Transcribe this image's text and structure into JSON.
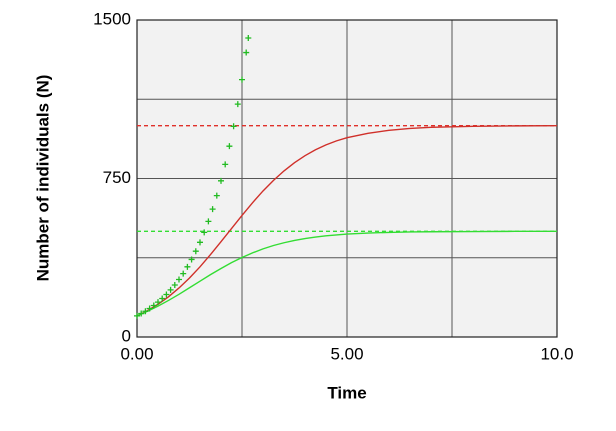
{
  "chart_data": {
    "type": "line",
    "xlabel": "Time",
    "ylabel": "Number of individuals (N)",
    "xlim": [
      0,
      10
    ],
    "ylim": [
      0,
      1500
    ],
    "xticks": [
      {
        "value": 0,
        "label": "0.00"
      },
      {
        "value": 2.5,
        "label": null
      },
      {
        "value": 5,
        "label": "5.00"
      },
      {
        "value": 7.5,
        "label": null
      },
      {
        "value": 10,
        "label": "10.0"
      }
    ],
    "yticks": [
      0,
      {
        "value": 375,
        "label": null
      },
      750,
      {
        "value": 1125,
        "label": null
      },
      1500
    ],
    "grid": true,
    "reference_lines": [
      {
        "value": 1000,
        "color": "#e0302a"
      },
      {
        "value": 500,
        "color": "#33dd33"
      }
    ],
    "series": [
      {
        "color": "#d0302a",
        "marker": "none",
        "x": [
          0,
          0.25,
          0.5,
          0.75,
          1,
          1.25,
          1.5,
          1.75,
          2,
          2.25,
          2.5,
          2.75,
          3,
          3.25,
          3.5,
          3.75,
          4,
          4.25,
          4.5,
          4.75,
          5,
          5.5,
          6,
          6.5,
          7,
          8,
          9,
          10
        ],
        "values": [
          100,
          125,
          155,
          190,
          232,
          279,
          332,
          390,
          451,
          513,
          575,
          635,
          691,
          741,
          786,
          825,
          858,
          886,
          909,
          928,
          943,
          964,
          978,
          987,
          992,
          997,
          999,
          1000
        ]
      },
      {
        "color": "#33dd33",
        "marker": "none",
        "x": [
          0,
          0.25,
          0.5,
          0.75,
          1,
          1.25,
          1.5,
          1.75,
          2,
          2.25,
          2.5,
          2.75,
          3,
          3.25,
          3.5,
          3.75,
          4,
          4.25,
          4.5,
          4.75,
          5,
          5.5,
          6,
          6.5,
          7,
          8,
          9,
          10
        ],
        "values": [
          100,
          122,
          146,
          173,
          202,
          233,
          264,
          295,
          324,
          352,
          376,
          398,
          417,
          433,
          446,
          457,
          466,
          473,
          479,
          483,
          487,
          492,
          495,
          497,
          498,
          499,
          500,
          500
        ]
      },
      {
        "color": "#22bb22",
        "marker": "plus",
        "x": [
          0,
          0.1,
          0.2,
          0.3,
          0.4,
          0.5,
          0.6,
          0.7,
          0.8,
          0.9,
          1,
          1.1,
          1.2,
          1.3,
          1.4,
          1.5,
          1.6,
          1.7,
          1.8,
          1.9,
          2,
          2.1,
          2.2,
          2.3,
          2.4,
          2.5,
          2.6,
          2.65
        ],
        "values": [
          100,
          111,
          122,
          135,
          149,
          165,
          182,
          201,
          223,
          246,
          272,
          300,
          332,
          367,
          406,
          448,
          495,
          547,
          605,
          669,
          739,
          817,
          903,
          997,
          1102,
          1218,
          1346,
          1415
        ]
      }
    ]
  }
}
